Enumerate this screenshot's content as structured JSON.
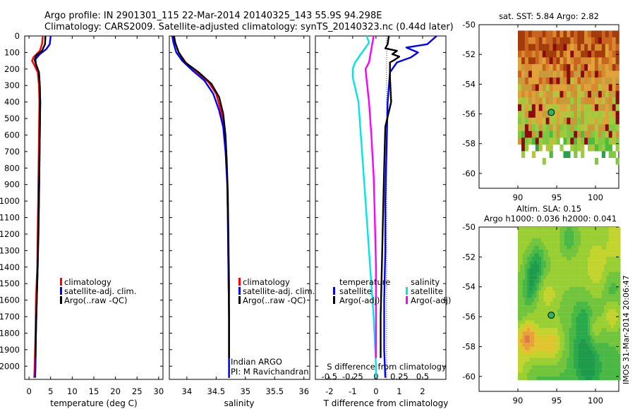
{
  "figure": {
    "title_line1": "Argo profile: IN 2901301_115 22-Mar-2014 20140325_143 55.9S 94.298E",
    "title_line2": "Climatology: CARS2009. Satellite-adjusted climatology: synTS_20140323.nc (0.44d later)",
    "footer_stamp": "IMOS 31-Mar-2014 20:06:47",
    "colors": {
      "climatology": "#ff0000",
      "satellite": "#0000ff",
      "argo": "#000000",
      "s_satellite": "#00e5e5",
      "s_argo": "#ff00ff"
    }
  },
  "chart_data": [
    {
      "type": "line",
      "id": "temperature",
      "xlabel": "temperature (deg C)",
      "xlim": [
        -1,
        31
      ],
      "ylim": [
        0,
        2080
      ],
      "x_ticks": [
        "0",
        "5",
        "10",
        "15",
        "20",
        "25",
        "30"
      ],
      "y_ticks": [
        "0",
        "100",
        "200",
        "300",
        "400",
        "500",
        "600",
        "700",
        "800",
        "900",
        "1000",
        "1100",
        "1200",
        "1300",
        "1400",
        "1500",
        "1600",
        "1700",
        "1800",
        "1900",
        "2000"
      ],
      "legend": [
        "climatology",
        "satellite-adj. clim.",
        "Argo(..raw -QC)"
      ],
      "series": [
        {
          "name": "climatology",
          "color": "#ff0000",
          "points": [
            [
              3.2,
              0
            ],
            [
              3.0,
              50
            ],
            [
              2.5,
              90
            ],
            [
              1.0,
              130
            ],
            [
              0.7,
              150
            ],
            [
              1.2,
              175
            ],
            [
              2.0,
              220
            ],
            [
              2.3,
              300
            ],
            [
              2.4,
              400
            ],
            [
              2.3,
              600
            ],
            [
              2.2,
              800
            ],
            [
              2.1,
              1000
            ],
            [
              2.0,
              1200
            ],
            [
              1.9,
              1400
            ],
            [
              1.6,
              1600
            ],
            [
              1.5,
              1800
            ],
            [
              1.3,
              2000
            ],
            [
              1.2,
              2070
            ]
          ]
        },
        {
          "name": "satellite-adj. clim.",
          "color": "#0000ff",
          "points": [
            [
              5.0,
              0
            ],
            [
              4.8,
              50
            ],
            [
              4.0,
              80
            ],
            [
              2.5,
              110
            ],
            [
              1.5,
              140
            ],
            [
              1.6,
              170
            ],
            [
              2.3,
              220
            ],
            [
              2.5,
              300
            ],
            [
              2.6,
              400
            ],
            [
              2.5,
              600
            ],
            [
              2.4,
              800
            ],
            [
              2.3,
              1000
            ],
            [
              2.2,
              1200
            ],
            [
              2.0,
              1400
            ],
            [
              1.8,
              1600
            ],
            [
              1.6,
              1800
            ],
            [
              1.5,
              2000
            ],
            [
              1.4,
              2070
            ]
          ]
        },
        {
          "name": "Argo(..raw -QC)",
          "color": "#000000",
          "points": [
            [
              3.8,
              0
            ],
            [
              3.7,
              50
            ],
            [
              3.0,
              90
            ],
            [
              1.6,
              120
            ],
            [
              1.3,
              145
            ],
            [
              1.6,
              170
            ],
            [
              2.3,
              220
            ],
            [
              2.5,
              300
            ],
            [
              2.6,
              400
            ],
            [
              2.5,
              600
            ],
            [
              2.4,
              800
            ],
            [
              2.3,
              1000
            ],
            [
              2.1,
              1200
            ],
            [
              2.0,
              1400
            ],
            [
              1.8,
              1600
            ],
            [
              1.6,
              1800
            ],
            [
              1.5,
              1950
            ]
          ]
        }
      ]
    },
    {
      "type": "line",
      "id": "salinity",
      "xlabel": "salinity",
      "xlim": [
        33.7,
        36.1
      ],
      "ylim": [
        0,
        2080
      ],
      "x_ticks": [
        "34",
        "34.5",
        "35",
        "35.5",
        "36"
      ],
      "legend": [
        "climatology",
        "satellite-adj. clim.",
        "Argo(..raw -QC)"
      ],
      "annotation": [
        "Indian ARGO",
        "PI: M Ravichandran"
      ],
      "series": [
        {
          "name": "climatology",
          "color": "#ff0000",
          "points": [
            [
              33.78,
              0
            ],
            [
              33.8,
              40
            ],
            [
              33.86,
              100
            ],
            [
              33.98,
              160
            ],
            [
              34.18,
              220
            ],
            [
              34.37,
              280
            ],
            [
              34.5,
              350
            ],
            [
              34.58,
              450
            ],
            [
              34.63,
              550
            ],
            [
              34.67,
              700
            ],
            [
              34.69,
              900
            ],
            [
              34.7,
              1100
            ],
            [
              34.71,
              1400
            ],
            [
              34.72,
              1700
            ],
            [
              34.72,
              2000
            ],
            [
              34.72,
              2070
            ]
          ]
        },
        {
          "name": "satellite-adj. clim.",
          "color": "#0000ff",
          "points": [
            [
              33.75,
              0
            ],
            [
              33.77,
              40
            ],
            [
              33.82,
              100
            ],
            [
              33.92,
              150
            ],
            [
              34.1,
              210
            ],
            [
              34.3,
              270
            ],
            [
              34.45,
              350
            ],
            [
              34.55,
              450
            ],
            [
              34.62,
              550
            ],
            [
              34.66,
              700
            ],
            [
              34.69,
              900
            ],
            [
              34.7,
              1100
            ],
            [
              34.71,
              1400
            ],
            [
              34.72,
              1700
            ],
            [
              34.72,
              2000
            ],
            [
              34.72,
              2070
            ]
          ]
        },
        {
          "name": "Argo(..raw -QC)",
          "color": "#000000",
          "points": [
            [
              33.78,
              0
            ],
            [
              33.8,
              40
            ],
            [
              33.86,
              100
            ],
            [
              33.97,
              160
            ],
            [
              34.2,
              220
            ],
            [
              34.42,
              290
            ],
            [
              34.55,
              370
            ],
            [
              34.62,
              470
            ],
            [
              34.66,
              600
            ],
            [
              34.68,
              750
            ],
            [
              34.7,
              950
            ],
            [
              34.71,
              1200
            ],
            [
              34.72,
              1500
            ],
            [
              34.72,
              1800
            ],
            [
              34.72,
              1950
            ]
          ]
        }
      ]
    },
    {
      "type": "line",
      "id": "differences",
      "xlabel": "T difference from climatology",
      "xlabel_top": "S difference from climatology",
      "xlim": [
        -2.6,
        3.0
      ],
      "ylim": [
        0,
        2080
      ],
      "x_ticks": [
        "-2",
        "-1",
        "0",
        "1",
        "2"
      ],
      "s_ticks": [
        "-0.5",
        "-0.25",
        "0",
        "0.25",
        "0.5"
      ],
      "legend_temperature_title": "temperature",
      "legend_salinity_title": "salinity",
      "legend": [
        "satellite",
        "Argo(-adj)",
        "satellite",
        "Argo(-adj)"
      ],
      "series": [
        {
          "name": "satellite",
          "group": "temperature",
          "color": "#0000ff",
          "points": [
            [
              2.6,
              0
            ],
            [
              2.2,
              50
            ],
            [
              1.3,
              70
            ],
            [
              1.8,
              100
            ],
            [
              1.5,
              130
            ],
            [
              0.9,
              160
            ],
            [
              0.6,
              220
            ],
            [
              0.5,
              400
            ],
            [
              0.45,
              700
            ],
            [
              0.4,
              1000
            ],
            [
              0.4,
              1300
            ],
            [
              0.35,
              1600
            ],
            [
              0.35,
              1900
            ],
            [
              0.4,
              2070
            ]
          ]
        },
        {
          "name": "Argo(-adj)",
          "group": "temperature",
          "color": "#000000",
          "points": [
            [
              0.55,
              0
            ],
            [
              0.5,
              50
            ],
            [
              0.4,
              75
            ],
            [
              0.9,
              90
            ],
            [
              0.7,
              110
            ],
            [
              1.0,
              125
            ],
            [
              0.8,
              145
            ],
            [
              0.6,
              160
            ],
            [
              0.6,
              250
            ],
            [
              0.65,
              400
            ],
            [
              0.4,
              550
            ],
            [
              0.35,
              800
            ],
            [
              0.3,
              1100
            ],
            [
              0.25,
              1400
            ],
            [
              0.2,
              1700
            ],
            [
              0.2,
              1950
            ]
          ]
        },
        {
          "name": "satellite",
          "group": "salinity",
          "color": "#00e5e5",
          "points": [
            [
              -0.4,
              0
            ],
            [
              -0.3,
              40
            ],
            [
              -0.9,
              160
            ],
            [
              -1.0,
              200
            ],
            [
              -1.0,
              250
            ],
            [
              -0.75,
              400
            ],
            [
              -0.65,
              600
            ],
            [
              -0.55,
              800
            ],
            [
              -0.4,
              1100
            ],
            [
              -0.25,
              1400
            ],
            [
              -0.1,
              1700
            ],
            [
              0.0,
              2000
            ],
            [
              0.0,
              2070
            ]
          ]
        },
        {
          "name": "Argo(-adj)",
          "group": "salinity",
          "color": "#ff00ff",
          "points": [
            [
              -0.1,
              0
            ],
            [
              -0.15,
              40
            ],
            [
              -0.3,
              160
            ],
            [
              -0.45,
              200
            ],
            [
              -0.3,
              400
            ],
            [
              -0.2,
              600
            ],
            [
              -0.1,
              850
            ],
            [
              -0.05,
              1100
            ],
            [
              0.0,
              1400
            ],
            [
              0.0,
              1700
            ],
            [
              0.0,
              1950
            ]
          ]
        }
      ]
    },
    {
      "type": "heatmap",
      "id": "sst-map",
      "title": "sat. SST: 5.84  Argo: 2.82",
      "xlim": [
        85,
        103
      ],
      "ylim": [
        -61,
        -50
      ],
      "x_ticks": [
        "90",
        "95",
        "100"
      ],
      "y_ticks": [
        "-50",
        "-52",
        "-54",
        "-56",
        "-58",
        "-60"
      ],
      "marker": {
        "lon": 94.3,
        "lat": -55.9
      }
    },
    {
      "type": "heatmap",
      "id": "sla-map",
      "title_line1": "Altim. SLA: 0.15",
      "title_line2": "Argo h1000: 0.036 h2000: 0.041",
      "xlim": [
        85,
        103
      ],
      "ylim": [
        -61,
        -50
      ],
      "x_ticks": [
        "90",
        "95",
        "100"
      ],
      "y_ticks": [
        "-50",
        "-52",
        "-54",
        "-56",
        "-58",
        "-60"
      ],
      "marker": {
        "lon": 94.3,
        "lat": -55.9
      }
    }
  ]
}
